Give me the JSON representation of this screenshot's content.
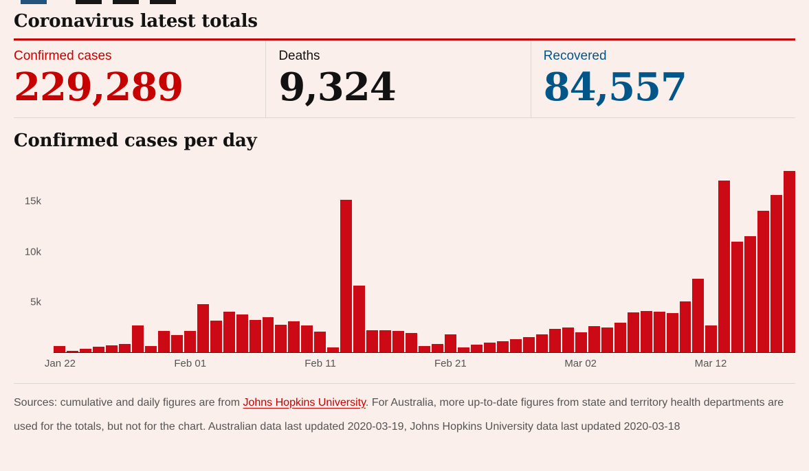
{
  "page": {
    "title": "Coronavirus latest totals"
  },
  "theme": {
    "background": "#fbefeb",
    "accent_red": "#c70000",
    "blue": "#005689",
    "dark": "#121212",
    "bar_red": "#cc0a15",
    "divider": "#dcd7d5"
  },
  "stats": [
    {
      "label": "Confirmed cases",
      "value": "229,289",
      "color": "#c70000"
    },
    {
      "label": "Deaths",
      "value": "9,324",
      "color": "#121212"
    },
    {
      "label": "Recovered",
      "value": "84,557",
      "color": "#005689"
    }
  ],
  "footer": {
    "prefix": "Sources: cumulative and daily figures are from ",
    "link_text": "Johns Hopkins University",
    "suffix": ". For Australia, more up-to-date figures from state and territory health departments are used for the totals, but not for the chart. Australian data last updated 2020-03-19, Johns Hopkins University data last updated 2020-03-18"
  },
  "chart_data": {
    "type": "bar",
    "title": "Confirmed cases per day",
    "bar_color": "#cc0a15",
    "ylim": [
      0,
      18500
    ],
    "grid": false,
    "yticks": [
      {
        "value": 5000,
        "label": "5k"
      },
      {
        "value": 10000,
        "label": "10k"
      },
      {
        "value": 15000,
        "label": "15k"
      }
    ],
    "xticks": [
      {
        "index": 0,
        "label": "Jan 22"
      },
      {
        "index": 10,
        "label": "Feb 01"
      },
      {
        "index": 20,
        "label": "Feb 11"
      },
      {
        "index": 30,
        "label": "Feb 21"
      },
      {
        "index": 40,
        "label": "Mar 02"
      },
      {
        "index": 50,
        "label": "Mar 12"
      }
    ],
    "x": [
      "Jan 22",
      "Jan 23",
      "Jan 24",
      "Jan 25",
      "Jan 26",
      "Jan 27",
      "Jan 28",
      "Jan 29",
      "Jan 30",
      "Jan 31",
      "Feb 01",
      "Feb 02",
      "Feb 03",
      "Feb 04",
      "Feb 05",
      "Feb 06",
      "Feb 07",
      "Feb 08",
      "Feb 09",
      "Feb 10",
      "Feb 11",
      "Feb 12",
      "Feb 13",
      "Feb 14",
      "Feb 15",
      "Feb 16",
      "Feb 17",
      "Feb 18",
      "Feb 19",
      "Feb 20",
      "Feb 21",
      "Feb 22",
      "Feb 23",
      "Feb 24",
      "Feb 25",
      "Feb 26",
      "Feb 27",
      "Feb 28",
      "Feb 29",
      "Mar 01",
      "Mar 02",
      "Mar 03",
      "Mar 04",
      "Mar 05",
      "Mar 06",
      "Mar 07",
      "Mar 08",
      "Mar 09",
      "Mar 10",
      "Mar 11",
      "Mar 12",
      "Mar 13",
      "Mar 14",
      "Mar 15",
      "Mar 16",
      "Mar 17",
      "Mar 18"
    ],
    "values": [
      555,
      99,
      287,
      493,
      684,
      809,
      2651,
      589,
      2068,
      1692,
      2111,
      4749,
      3104,
      3996,
      3742,
      3164,
      3436,
      2683,
      3012,
      2620,
      2049,
      483,
      15151,
      6622,
      2147,
      2168,
      2065,
      1893,
      594,
      796,
      1771,
      462,
      699,
      899,
      1071,
      1264,
      1483,
      1758,
      2312,
      2407,
      1963,
      2590,
      2405,
      2932,
      3941,
      4068,
      3987,
      3872,
      5049,
      7300,
      2646,
      17052,
      10980,
      11498,
      14058,
      15605,
      17976
    ]
  }
}
